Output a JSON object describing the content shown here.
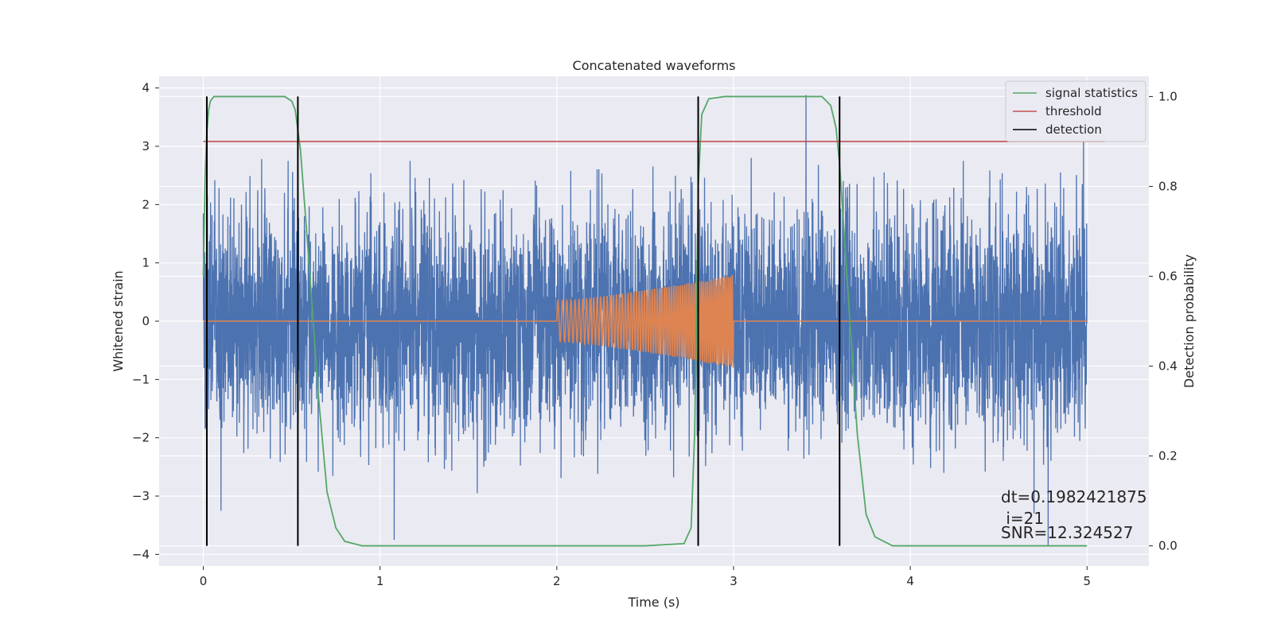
{
  "chart_data": {
    "type": "line",
    "title": "Concatenated waveforms",
    "xlabel": "Time (s)",
    "ylabel": "Whitened strain",
    "y2label": "Detection probability",
    "xlim": [
      -0.25,
      5.35
    ],
    "ylim": [
      -4.2,
      4.2
    ],
    "y2lim": [
      -0.045,
      1.045
    ],
    "xticks": [
      "0",
      "1",
      "2",
      "3",
      "4",
      "5"
    ],
    "yticks": [
      "−4",
      "−3",
      "−2",
      "−1",
      "0",
      "1",
      "2",
      "3",
      "4"
    ],
    "y2ticks": [
      "0.0",
      "0.2",
      "0.4",
      "0.6",
      "0.8",
      "1.0"
    ],
    "grid": true,
    "legend_position": "top-right",
    "series": [
      {
        "name": "",
        "axis": "left",
        "color": "#4c72b0",
        "kind": "noise",
        "x_range": [
          0,
          5
        ],
        "typical_amplitude": 1.0,
        "extreme_points": [
          {
            "x": 0.0,
            "y": 1.85
          },
          {
            "x": 0.01,
            "y": -1.85
          },
          {
            "x": 0.1,
            "y": -3.25
          },
          {
            "x": 0.33,
            "y": 2.78
          },
          {
            "x": 0.48,
            "y": 2.75
          },
          {
            "x": 1.08,
            "y": -3.75
          },
          {
            "x": 1.17,
            "y": 2.75
          },
          {
            "x": 1.55,
            "y": -2.95
          },
          {
            "x": 2.8,
            "y": -1.5
          },
          {
            "x": 3.1,
            "y": 2.8
          },
          {
            "x": 3.41,
            "y": 3.88
          },
          {
            "x": 3.48,
            "y": 2.68
          },
          {
            "x": 4.3,
            "y": 2.75
          },
          {
            "x": 4.7,
            "y": -3.3
          },
          {
            "x": 4.78,
            "y": -3.85
          },
          {
            "x": 4.85,
            "y": 2.55
          },
          {
            "x": 4.98,
            "y": 3.1
          }
        ]
      },
      {
        "name": "",
        "axis": "left",
        "color": "#dd8452",
        "kind": "chirp",
        "baseline": 0,
        "chirp_start": 2.0,
        "chirp_end": 3.0,
        "amplitude_start": 0.35,
        "amplitude_end": 0.8,
        "x_range": [
          0,
          5
        ]
      },
      {
        "name": "signal statistics",
        "axis": "right",
        "color": "#55a868",
        "x": [
          0.0,
          0.01,
          0.02,
          0.03,
          0.04,
          0.06,
          0.1,
          0.2,
          0.46,
          0.5,
          0.52,
          0.55,
          0.6,
          0.65,
          0.7,
          0.75,
          0.8,
          0.9,
          1.0,
          2.5,
          2.72,
          2.76,
          2.78,
          2.79,
          2.8,
          2.82,
          2.86,
          2.95,
          3.5,
          3.55,
          3.58,
          3.6,
          3.65,
          3.7,
          3.75,
          3.8,
          3.9,
          5.0
        ],
        "values": [
          0.6,
          0.82,
          0.92,
          0.97,
          0.99,
          1.0,
          1.0,
          1.0,
          1.0,
          0.99,
          0.97,
          0.88,
          0.62,
          0.34,
          0.12,
          0.04,
          0.01,
          0.0,
          0.0,
          0.0,
          0.005,
          0.04,
          0.25,
          0.5,
          0.8,
          0.96,
          0.995,
          1.0,
          1.0,
          0.98,
          0.93,
          0.85,
          0.55,
          0.25,
          0.07,
          0.02,
          0.0,
          0.0
        ]
      },
      {
        "name": "threshold",
        "axis": "right",
        "color": "#c44e52",
        "x": [
          0.0,
          5.1
        ],
        "values": [
          0.9,
          0.9
        ]
      },
      {
        "name": "detection",
        "axis": "right",
        "color": "#000000",
        "kind": "vlines",
        "x": [
          0.02,
          0.535,
          2.8,
          3.6
        ],
        "ymin": 0.0,
        "ymax": 1.0
      }
    ],
    "annotations": [
      "dt=0.1982421875",
      " i=21",
      "SNR=12.324527"
    ]
  }
}
